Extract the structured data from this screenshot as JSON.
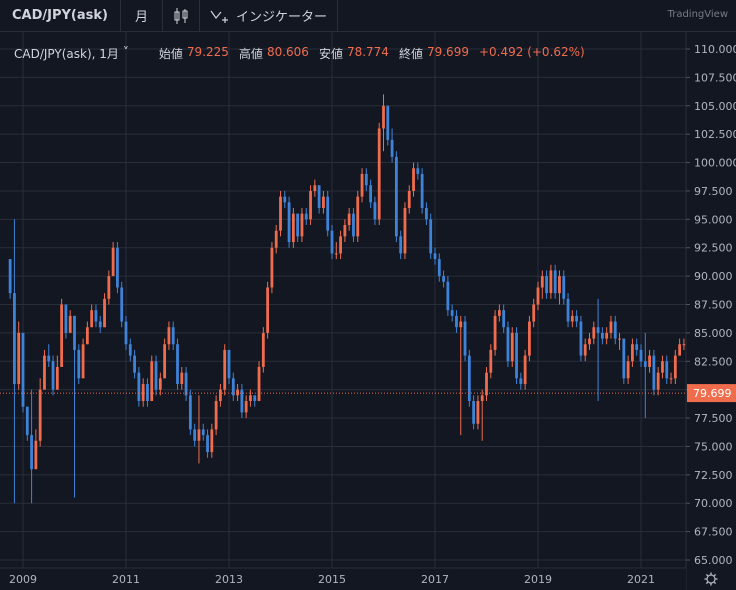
{
  "toolbar": {
    "symbol": "CAD/JPY(ask)",
    "interval": "月",
    "chart_type_icon": "candlestick-icon",
    "indicators_icon": "indicators-icon",
    "indicators_label": "インジケーター",
    "brand": "TradingView"
  },
  "legend": {
    "symbol": "CAD/JPY(ask), 1月",
    "chevron": "˅",
    "open_label": "始値",
    "open": "79.225",
    "high_label": "高値",
    "high": "80.606",
    "low_label": "安値",
    "low": "78.774",
    "close_label": "終値",
    "close": "79.699",
    "change": "+0.492 (+0.62%)"
  },
  "settings_icon": "gear-icon",
  "colors": {
    "background": "#131722",
    "grid": "#2a2e39",
    "up": "#ef6c4d",
    "down": "#3f83d8",
    "price_line": "#ef6c4d",
    "text": "#b2b5be"
  },
  "chart_data": {
    "type": "candlestick",
    "title": "",
    "xlabel": "",
    "ylabel": "",
    "ylim": [
      65.0,
      110.0
    ],
    "y_ticks": [
      "110.000",
      "107.500",
      "105.000",
      "102.500",
      "100.000",
      "97.500",
      "95.000",
      "92.500",
      "90.000",
      "87.500",
      "85.000",
      "82.500",
      "80.000",
      "77.500",
      "75.000",
      "72.500",
      "70.000",
      "67.500",
      "65.000"
    ],
    "x_ticks": [
      "2009",
      "2011",
      "2013",
      "2015",
      "2017",
      "2019",
      "2021"
    ],
    "last_price": "79.699",
    "grid": true,
    "start": "2008-10",
    "end": "2020-10",
    "close": [
      88.5,
      80.5,
      85.0,
      78.5,
      76.0,
      73.0,
      75.5,
      80.0,
      83.0,
      82.5,
      80.0,
      82.0,
      87.5,
      85.0,
      86.5,
      83.5,
      81.0,
      84.0,
      85.5,
      87.0,
      86.0,
      85.5,
      88.0,
      90.0,
      92.5,
      89.0,
      86.0,
      84.0,
      83.0,
      81.5,
      79.0,
      80.5,
      79.0,
      82.5,
      80.0,
      81.0,
      84.0,
      85.5,
      84.0,
      80.5,
      81.5,
      79.5,
      76.5,
      75.5,
      76.5,
      76.0,
      74.5,
      76.5,
      79.0,
      80.0,
      83.5,
      81.0,
      79.5,
      80.0,
      78.0,
      79.0,
      79.5,
      79.0,
      82.0,
      85.0,
      89.0,
      92.5,
      94.0,
      97.0,
      96.5,
      93.0,
      95.5,
      93.5,
      95.5,
      95.0,
      97.5,
      98.0,
      96.0,
      97.0,
      94.0,
      92.0,
      92.0,
      93.5,
      94.5,
      95.5,
      93.5,
      97.0,
      99.0,
      98.0,
      96.5,
      95.0,
      103.0,
      105.0,
      102.0,
      100.5,
      93.5,
      92.0,
      96.0,
      97.5,
      99.5,
      99.0,
      96.0,
      95.0,
      92.0,
      91.5,
      90.0,
      89.5,
      87.0,
      86.5,
      85.5,
      86.0,
      83.0,
      79.0,
      77.0,
      79.0,
      79.5,
      81.5,
      83.5,
      86.5,
      87.0,
      85.5,
      82.5,
      85.0,
      81.0,
      80.5,
      83.0,
      86.0,
      87.5,
      89.0,
      90.0,
      88.5,
      90.5,
      88.5,
      90.0,
      88.0,
      86.0,
      86.5,
      86.0,
      83.0,
      84.0,
      84.5,
      85.5,
      85.0,
      84.5,
      85.0,
      86.0,
      84.5,
      84.5,
      81.0,
      82.5,
      84.0,
      83.5,
      82.5,
      82.0,
      83.0,
      80.0,
      81.5,
      82.5,
      81.0,
      81.0,
      83.0,
      84.0,
      84.0,
      81.5,
      79.0,
      76.5,
      77.5,
      78.0,
      79.0,
      80.0,
      79.0,
      79.0,
      79.2,
      79.7
    ],
    "high": [
      89.5,
      88.5,
      86.0,
      85.0,
      78.5,
      76.0,
      76.5,
      81.0,
      83.5,
      84.0,
      83.0,
      83.0,
      88.0,
      87.5,
      87.0,
      86.5,
      84.0,
      84.5,
      86.0,
      87.5,
      87.5,
      86.5,
      88.5,
      90.5,
      93.0,
      93.0,
      89.5,
      86.5,
      84.5,
      83.5,
      82.0,
      81.0,
      81.0,
      83.0,
      83.0,
      81.5,
      84.5,
      86.0,
      86.0,
      84.5,
      82.0,
      82.0,
      80.0,
      77.0,
      77.0,
      77.0,
      76.5,
      77.0,
      79.5,
      80.5,
      84.0,
      83.5,
      81.5,
      80.5,
      80.5,
      79.5,
      80.0,
      79.5,
      82.5,
      85.5,
      89.5,
      93.0,
      94.5,
      97.5,
      97.5,
      97.0,
      96.0,
      95.5,
      96.0,
      96.0,
      98.0,
      98.5,
      98.0,
      97.5,
      97.5,
      94.5,
      93.0,
      94.0,
      95.0,
      96.0,
      96.0,
      97.5,
      99.5,
      99.5,
      98.5,
      97.0,
      103.5,
      105.5,
      105.0,
      103.0,
      101.0,
      94.0,
      96.5,
      98.0,
      100.0,
      100.0,
      99.5,
      96.5,
      95.5,
      92.5,
      92.0,
      90.5,
      90.0,
      87.5,
      87.0,
      86.5,
      86.5,
      83.5,
      79.5,
      79.5,
      80.0,
      82.0,
      84.0,
      87.0,
      87.5,
      87.5,
      86.0,
      85.5,
      85.5,
      81.5,
      83.5,
      86.5,
      88.0,
      89.5,
      90.5,
      90.5,
      91.0,
      91.0,
      90.5,
      90.5,
      88.5,
      87.0,
      87.0,
      86.5,
      84.5,
      85.0,
      86.0,
      86.0,
      85.5,
      85.5,
      86.5,
      86.5,
      85.0,
      84.5,
      83.0,
      84.5,
      84.5,
      84.0,
      83.0,
      83.5,
      83.5,
      82.0,
      83.0,
      83.0,
      81.5,
      83.5,
      84.5,
      84.5,
      84.5,
      82.0,
      79.5,
      78.0,
      78.5,
      79.5,
      80.5,
      80.5,
      79.5,
      80.6,
      80.6
    ],
    "low": [
      88.0,
      80.0,
      80.0,
      78.0,
      75.5,
      72.5,
      73.0,
      75.0,
      80.0,
      82.0,
      79.5,
      80.0,
      82.0,
      84.5,
      85.0,
      83.0,
      80.5,
      81.0,
      84.0,
      85.5,
      85.5,
      85.0,
      85.5,
      87.5,
      90.0,
      88.5,
      85.5,
      83.5,
      82.5,
      81.0,
      78.5,
      78.5,
      78.5,
      79.0,
      79.5,
      79.5,
      81.0,
      83.5,
      83.5,
      80.0,
      80.0,
      79.0,
      76.0,
      75.0,
      75.0,
      75.5,
      74.0,
      74.0,
      76.0,
      78.5,
      79.5,
      80.5,
      79.0,
      79.0,
      77.5,
      77.5,
      78.5,
      78.5,
      79.0,
      81.5,
      84.5,
      88.5,
      92.0,
      93.5,
      96.0,
      92.5,
      92.5,
      93.0,
      93.0,
      94.5,
      94.5,
      97.0,
      95.5,
      95.5,
      93.5,
      91.5,
      91.5,
      91.5,
      93.0,
      94.0,
      93.0,
      93.0,
      96.5,
      97.5,
      96.0,
      94.5,
      94.5,
      102.5,
      101.5,
      100.0,
      93.0,
      91.5,
      91.5,
      95.5,
      97.0,
      98.5,
      95.5,
      94.5,
      91.5,
      91.0,
      89.5,
      89.0,
      86.5,
      86.0,
      85.0,
      85.0,
      82.5,
      78.5,
      76.5,
      76.5,
      78.5,
      79.0,
      81.0,
      83.0,
      86.0,
      85.0,
      82.0,
      82.0,
      80.5,
      80.0,
      80.0,
      82.5,
      85.5,
      87.0,
      88.0,
      88.0,
      88.0,
      88.0,
      87.5,
      87.5,
      85.5,
      85.5,
      85.5,
      82.5,
      82.5,
      83.5,
      84.0,
      84.5,
      84.0,
      84.0,
      84.5,
      84.0,
      83.5,
      80.5,
      80.5,
      82.0,
      83.0,
      82.0,
      81.5,
      81.5,
      79.5,
      79.5,
      81.0,
      80.5,
      80.5,
      80.5,
      83.0,
      83.5,
      81.0,
      78.5,
      76.0,
      76.0,
      77.0,
      78.0,
      78.5,
      78.5,
      78.5,
      78.8,
      78.8
    ],
    "long_wicks": [
      [
        1,
        95.0,
        70.0
      ],
      [
        5,
        80.0,
        70.0
      ],
      [
        15,
        84.0,
        70.5
      ],
      [
        44,
        79.5,
        73.5
      ],
      [
        87,
        106.0,
        101.0
      ],
      [
        105,
        85.5,
        76.0
      ],
      [
        110,
        79.5,
        75.5
      ],
      [
        137,
        88.0,
        79.0
      ],
      [
        148,
        85.0,
        77.5
      ],
      [
        166,
        82.0,
        74.0
      ],
      [
        170,
        79.5,
        75.0
      ]
    ]
  }
}
